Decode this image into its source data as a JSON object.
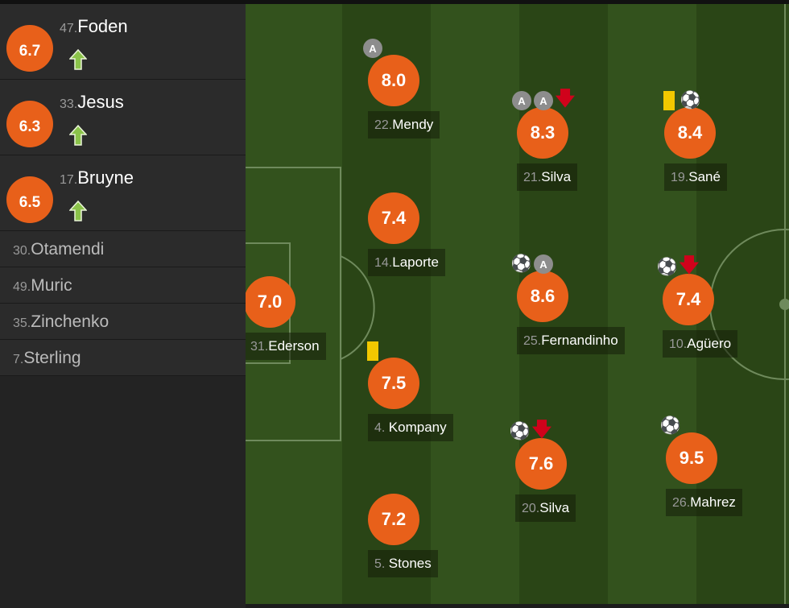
{
  "colors": {
    "rating": "#e8601a",
    "sub_arrow": "#8bc34a",
    "sub_off": "#d0021b",
    "card": "#f2c800"
  },
  "substitutes": [
    {
      "rating": "6.7",
      "number": "47.",
      "name": "Foden",
      "icon": "sub-on-arrow-icon"
    },
    {
      "rating": "6.3",
      "number": "33.",
      "name": "Jesus",
      "icon": "sub-on-arrow-icon"
    },
    {
      "rating": "6.5",
      "number": "17.",
      "name": "Bruyne",
      "icon": "sub-on-arrow-icon"
    }
  ],
  "bench": [
    {
      "number": "30.",
      "name": "Otamendi"
    },
    {
      "number": "49.",
      "name": "Muric"
    },
    {
      "number": "35.",
      "name": "Zinchenko"
    },
    {
      "number": "7.",
      "name": "Sterling"
    }
  ],
  "players": [
    {
      "rating": "7.0",
      "number": "31.",
      "name": "Ederson",
      "icons": []
    },
    {
      "rating": "8.0",
      "number": "22.",
      "name": "Mendy",
      "icons": [
        "assist"
      ]
    },
    {
      "rating": "7.4",
      "number": "14.",
      "name": "Laporte",
      "icons": []
    },
    {
      "rating": "7.5",
      "number": "4. ",
      "name": "Kompany",
      "icons": [
        "yellow-card"
      ]
    },
    {
      "rating": "7.2",
      "number": "5. ",
      "name": "Stones",
      "icons": []
    },
    {
      "rating": "8.3",
      "number": "21.",
      "name": "Silva",
      "icons": [
        "assist",
        "assist",
        "sub-off"
      ]
    },
    {
      "rating": "8.6",
      "number": "25.",
      "name": "Fernandinho",
      "icons": [
        "goal",
        "assist"
      ]
    },
    {
      "rating": "7.6",
      "number": "20.",
      "name": "Silva",
      "icons": [
        "goal",
        "sub-off"
      ]
    },
    {
      "rating": "8.4",
      "number": "19.",
      "name": "Sané",
      "icons": [
        "yellow-card",
        "goal"
      ]
    },
    {
      "rating": "7.4",
      "number": "10.",
      "name": "Agüero",
      "icons": [
        "goal",
        "sub-off"
      ]
    },
    {
      "rating": "9.5",
      "number": "26.",
      "name": "Mahrez",
      "icons": [
        "goal"
      ]
    }
  ],
  "assist_letter": "A"
}
